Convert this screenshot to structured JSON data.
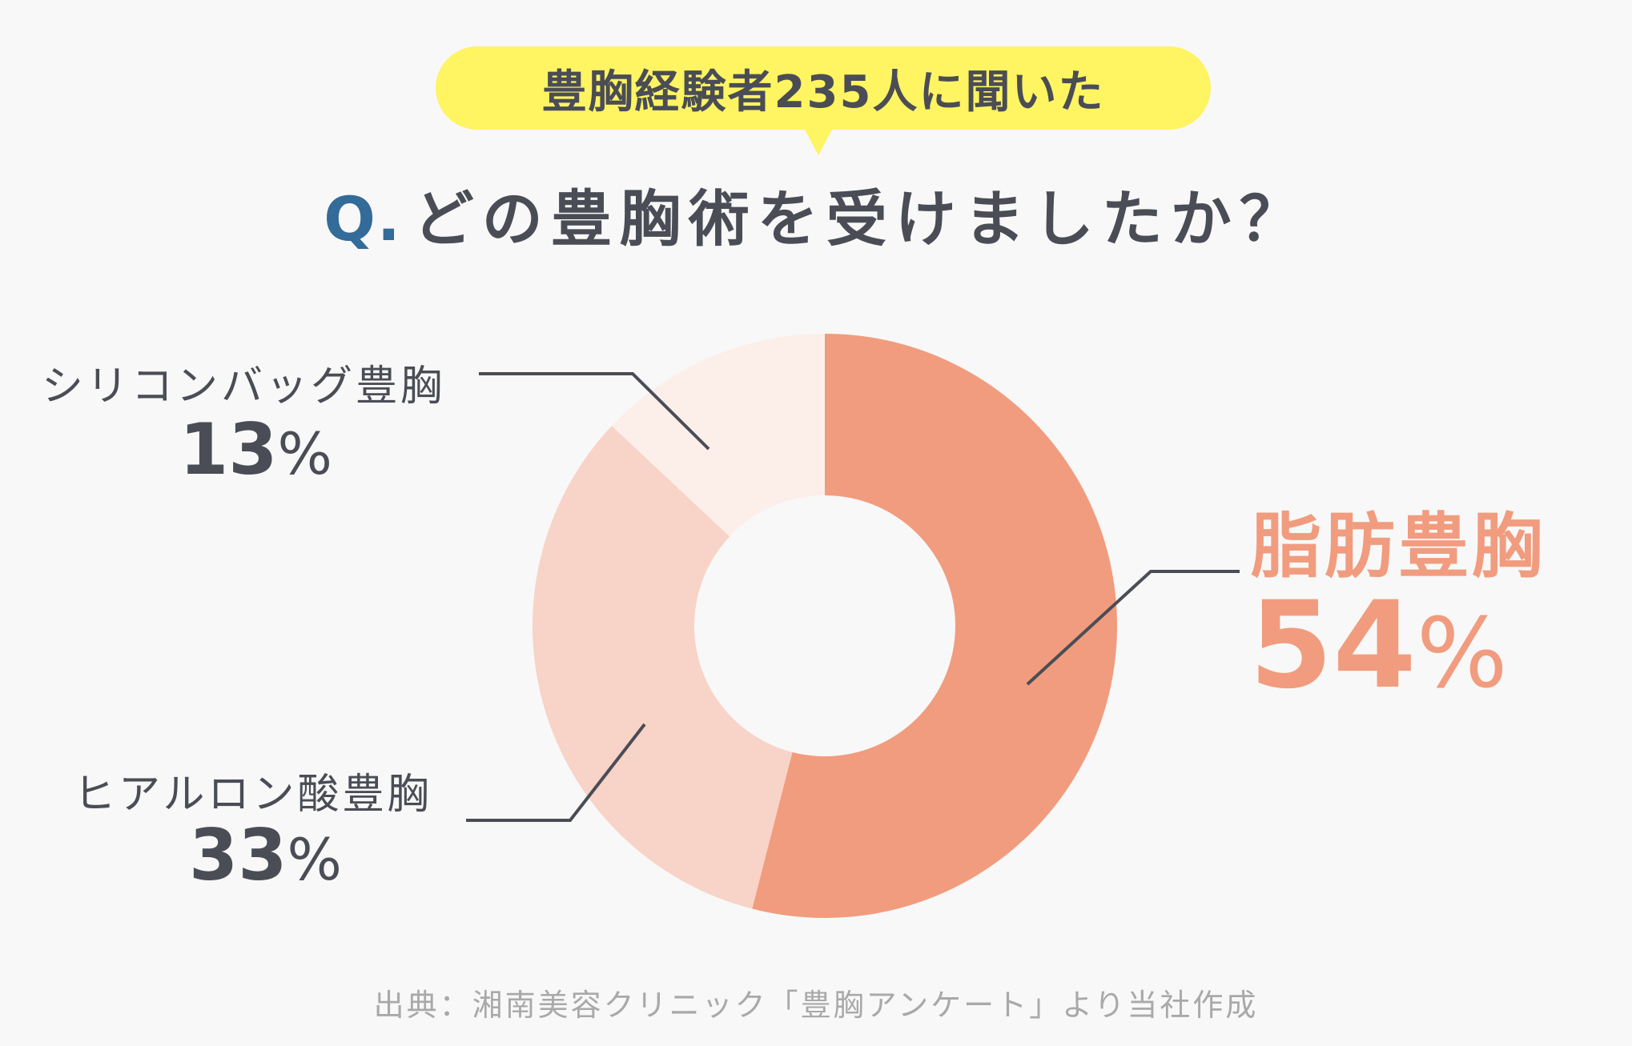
{
  "badge": {
    "text": "豊胸経験者235人に聞いた",
    "color": "#fff462"
  },
  "question": {
    "prefix": "Q.",
    "text": "どの豊胸術を受けましたか？",
    "prefix_color": "#336b99"
  },
  "chart_data": {
    "type": "pie",
    "variant": "donut",
    "title": "",
    "unit": "%",
    "categories": [
      "脂肪豊胸",
      "ヒアルロン酸豊胸",
      "シリコンバッグ豊胸"
    ],
    "values": [
      54,
      33,
      13
    ],
    "colors": [
      "#f19c7e",
      "#f8d3c7",
      "#fcefea"
    ],
    "labels": [
      {
        "name": "脂肪豊胸",
        "value": "54",
        "unit": "%"
      },
      {
        "name": "ヒアルロン酸豊胸",
        "value": "33",
        "unit": "%"
      },
      {
        "name": "シリコンバッグ豊胸",
        "value": "13",
        "unit": "%"
      }
    ],
    "legend": "none",
    "start_angle": "12 o'clock, clockwise"
  },
  "source": "出典：湘南美容クリニック「豊胸アンケート」より当社作成"
}
